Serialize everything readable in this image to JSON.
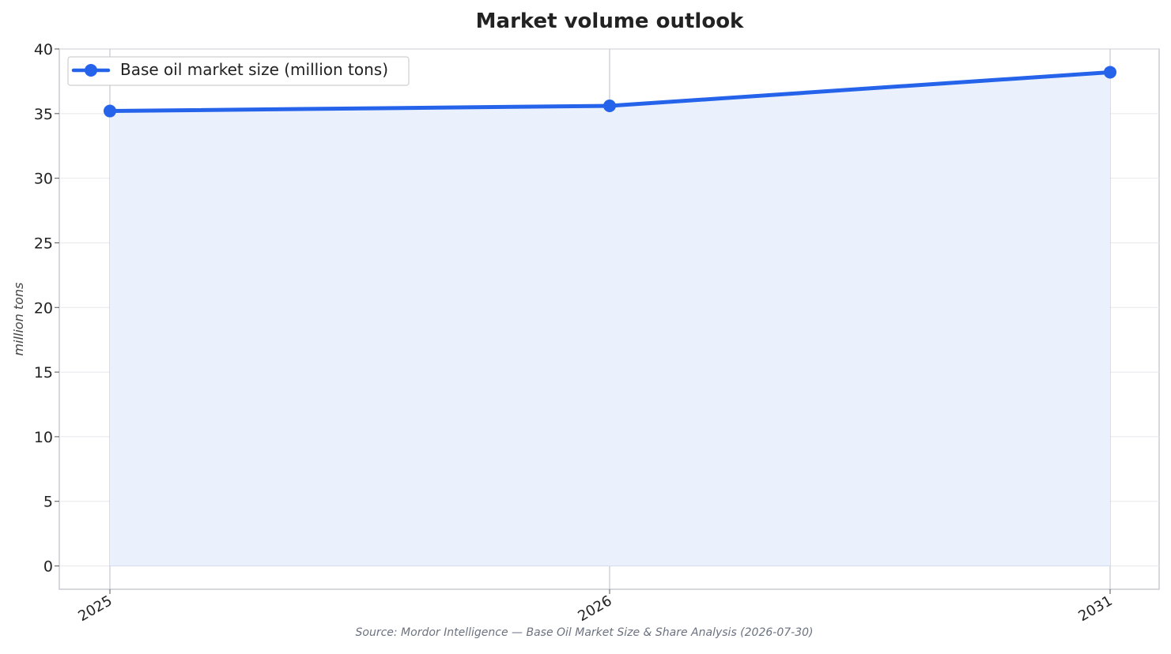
{
  "chart_data": {
    "type": "line",
    "title": "Market volume outlook",
    "ylabel": "million tons",
    "xlabel": "",
    "categories": [
      "2025",
      "2026",
      "2031"
    ],
    "series": [
      {
        "name": "Base oil market size (million tons)",
        "values": [
          35.2,
          35.6,
          38.2
        ],
        "color": "#2563eb",
        "fill_color": "#eaf0fc"
      }
    ],
    "ylim": [
      -1.8,
      40
    ],
    "yticks": [
      0,
      5,
      10,
      15,
      20,
      25,
      30,
      35,
      40
    ],
    "grid": true,
    "legend_position": "top-left",
    "source_note": "Source: Mordor Intelligence — Base Oil Market Size & Share Analysis (2026-07-30)"
  }
}
